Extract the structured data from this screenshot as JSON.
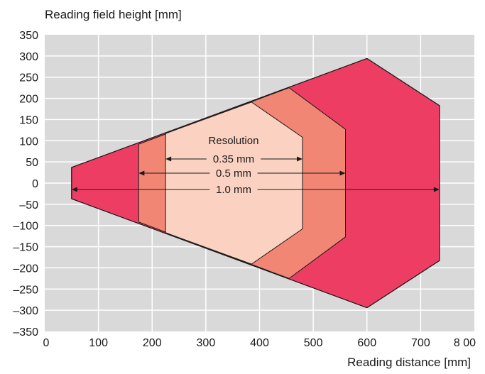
{
  "chart_data": {
    "type": "area",
    "xlabel": "Reading distance  [mm]",
    "ylabel": "Reading field height [mm]",
    "xlim": [
      0,
      800
    ],
    "ylim": [
      -350,
      350
    ],
    "grid": true,
    "x_ticks": [
      0,
      100,
      200,
      300,
      400,
      500,
      600,
      700,
      800
    ],
    "x_tick_labels": [
      "0",
      "100",
      "200",
      "300",
      "400",
      "500",
      "600",
      "700",
      "8 00"
    ],
    "y_ticks": [
      350,
      300,
      250,
      200,
      150,
      100,
      50,
      0,
      -50,
      -100,
      -150,
      -200,
      -250,
      -300,
      -350
    ],
    "y_tick_labels": [
      "350",
      "300",
      "250",
      "200",
      "150",
      "100",
      "50",
      "0",
      "–50",
      "–100",
      "–150",
      "–200",
      "–250",
      "–300",
      "–350"
    ],
    "annotation_title": "Resolution",
    "series": [
      {
        "name": "1.0 mm",
        "color": "#ee3d63",
        "points": [
          [
            50,
            37
          ],
          [
            600,
            294
          ],
          [
            735,
            183
          ],
          [
            735,
            -183
          ],
          [
            600,
            -294
          ],
          [
            50,
            -37
          ]
        ],
        "range": [
          50,
          735
        ]
      },
      {
        "name": "0.5 mm",
        "color": "#f08673",
        "points": [
          [
            175,
            92
          ],
          [
            455,
            225
          ],
          [
            560,
            127
          ],
          [
            560,
            -127
          ],
          [
            455,
            -225
          ],
          [
            175,
            -92
          ]
        ],
        "range": [
          175,
          560
        ]
      },
      {
        "name": "0.35 mm",
        "color": "#fbd2c1",
        "points": [
          [
            225,
            117
          ],
          [
            385,
            191
          ],
          [
            480,
            108
          ],
          [
            480,
            -108
          ],
          [
            385,
            -191
          ],
          [
            225,
            -117
          ]
        ],
        "range": [
          225,
          480
        ]
      }
    ],
    "outline_points": [
      [
        50,
        37
      ],
      [
        600,
        294
      ],
      [
        735,
        183
      ],
      [
        735,
        -183
      ],
      [
        600,
        -294
      ],
      [
        50,
        -37
      ]
    ]
  },
  "colors": {
    "plot_background": "#d9d9d9",
    "grid": "#ffffff",
    "outline": "#1a1a1a"
  }
}
